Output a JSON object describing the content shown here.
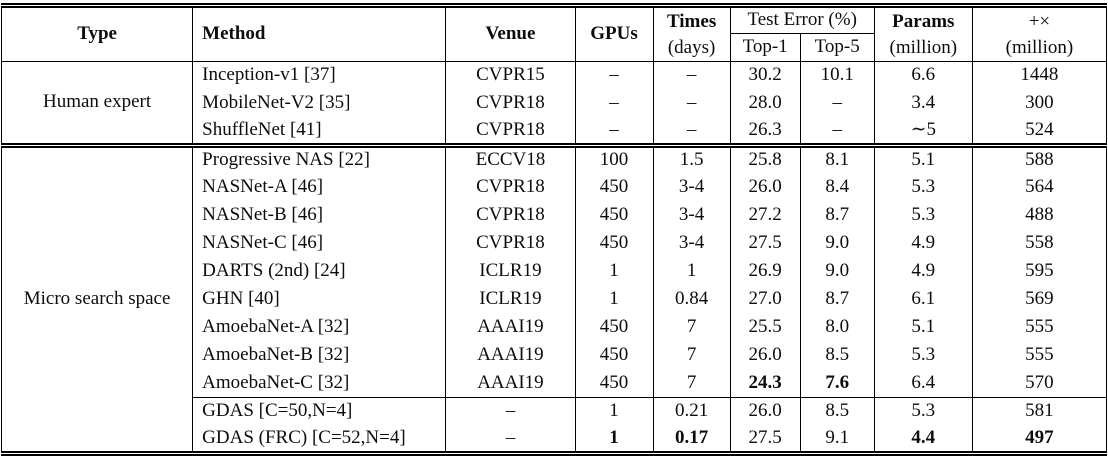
{
  "table": {
    "headers": {
      "type": "Type",
      "method": "Method",
      "venue": "Venue",
      "gpus": "GPUs",
      "times": "Times",
      "times_unit": "(days)",
      "test_error": "Test Error (%)",
      "top1": "Top-1",
      "top5": "Top-5",
      "params": "Params",
      "params_unit": "(million)",
      "multadds": "+×",
      "multadds_unit": "(million)"
    },
    "sections": [
      {
        "group": "Human expert",
        "rows": [
          {
            "cells": [
              "Inception-v1 [37]",
              "CVPR15",
              "–",
              "–",
              "30.2",
              "10.1",
              "6.6",
              "1448"
            ]
          },
          {
            "cells": [
              "MobileNet-V2 [35]",
              "CVPR18",
              "–",
              "–",
              "28.0",
              "–",
              "3.4",
              "300"
            ]
          },
          {
            "cells": [
              "ShuffleNet [41]",
              "CVPR18",
              "–",
              "–",
              "26.3",
              "–",
              "∼5",
              "524"
            ]
          }
        ]
      },
      {
        "group": "Micro search space",
        "rows": [
          {
            "cells": [
              "Progressive NAS [22]",
              "ECCV18",
              "100",
              "1.5",
              "25.8",
              "8.1",
              "5.1",
              "588"
            ]
          },
          {
            "cells": [
              "NASNet-A [46]",
              "CVPR18",
              "450",
              "3-4",
              "26.0",
              "8.4",
              "5.3",
              "564"
            ]
          },
          {
            "cells": [
              "NASNet-B [46]",
              "CVPR18",
              "450",
              "3-4",
              "27.2",
              "8.7",
              "5.3",
              "488"
            ]
          },
          {
            "cells": [
              "NASNet-C [46]",
              "CVPR18",
              "450",
              "3-4",
              "27.5",
              "9.0",
              "4.9",
              "558"
            ]
          },
          {
            "cells": [
              "DARTS (2nd) [24]",
              "ICLR19",
              "1",
              "1",
              "26.9",
              "9.0",
              "4.9",
              "595"
            ]
          },
          {
            "cells": [
              "GHN [40]",
              "ICLR19",
              "1",
              "0.84",
              "27.0",
              "8.7",
              "6.1",
              "569"
            ]
          },
          {
            "cells": [
              "AmoebaNet-A [32]",
              "AAAI19",
              "450",
              "7",
              "25.5",
              "8.0",
              "5.1",
              "555"
            ]
          },
          {
            "cells": [
              "AmoebaNet-B [32]",
              "AAAI19",
              "450",
              "7",
              "26.0",
              "8.5",
              "5.3",
              "555"
            ]
          },
          {
            "cells": [
              "AmoebaNet-C [32]",
              "AAAI19",
              "450",
              "7",
              "24.3",
              "7.6",
              "6.4",
              "570"
            ],
            "bold": [
              4,
              5
            ]
          },
          {
            "cells": [
              "GDAS [C=50,N=4]",
              "–",
              "1",
              "0.21",
              "26.0",
              "8.5",
              "5.3",
              "581"
            ],
            "rule_above": true
          },
          {
            "cells": [
              "GDAS (FRC) [C=52,N=4]",
              "–",
              "1",
              "0.17",
              "27.5",
              "9.1",
              "4.4",
              "497"
            ],
            "bold": [
              2,
              3,
              6,
              7
            ]
          }
        ]
      }
    ],
    "cell_names": [
      "method-cell",
      "venue-cell",
      "gpus-cell",
      "times-cell",
      "top1-error-cell",
      "top5-error-cell",
      "params-cell",
      "multadds-cell"
    ]
  }
}
